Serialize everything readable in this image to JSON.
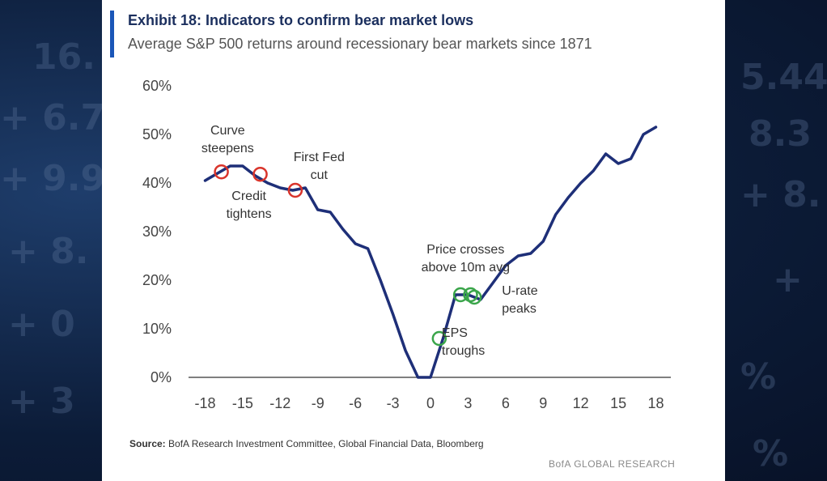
{
  "background_numbers": {
    "left": [
      "16.",
      "+ 6.7",
      "+ 9.9",
      "+ 8.",
      "+ 0",
      "+ 3"
    ],
    "right": [
      "5.44",
      "8.3",
      "+ 8.",
      "+",
      "%",
      "%"
    ]
  },
  "header": {
    "title": "Exhibit 18: Indicators to confirm bear market lows",
    "subtitle": "Average S&P 500 returns around recessionary bear markets since 1871"
  },
  "footer": {
    "source_label": "Source:",
    "source_text": "BofA Research Investment Committee, Global Financial Data, Bloomberg",
    "brand": "BofA GLOBAL RESEARCH"
  },
  "chart_data": {
    "type": "line",
    "title": "Exhibit 18: Indicators to confirm bear market lows",
    "subtitle": "Average S&P 500 returns around recessionary bear markets since 1871",
    "xlabel": "",
    "ylabel": "",
    "xlim": [
      -19,
      19
    ],
    "ylim": [
      0,
      60
    ],
    "x_ticks": [
      -18,
      -15,
      -12,
      -9,
      -6,
      -3,
      0,
      3,
      6,
      9,
      12,
      15,
      18
    ],
    "x_tick_labels": [
      "-18",
      "-15",
      "-12",
      "-9",
      "-6",
      "-3",
      "0",
      "3",
      "6",
      "9",
      "12",
      "15",
      "18"
    ],
    "y_ticks": [
      0,
      10,
      20,
      30,
      40,
      50,
      60
    ],
    "y_tick_labels": [
      "0%",
      "10%",
      "20%",
      "30%",
      "40%",
      "50%",
      "60%"
    ],
    "grid": false,
    "line_color": "#1e2f78",
    "series": [
      {
        "name": "",
        "x": [
          -18,
          -17,
          -16,
          -15,
          -14,
          -13,
          -12,
          -11,
          -10,
          -9,
          -8,
          -7,
          -6,
          -5,
          -4,
          -3,
          -2,
          -1,
          0,
          1,
          2,
          3,
          4,
          5,
          6,
          7,
          8,
          9,
          10,
          11,
          12,
          13,
          14,
          15,
          16,
          17,
          18
        ],
        "y": [
          40.5,
          42,
          43.5,
          43.5,
          41.5,
          40,
          39,
          38.5,
          39,
          34.5,
          34,
          30.5,
          27.5,
          26.5,
          20,
          13,
          5.5,
          0,
          0,
          8,
          17,
          17,
          16,
          19.5,
          23,
          25,
          25.5,
          28,
          33.5,
          37,
          40,
          42.5,
          46,
          44,
          45,
          50,
          51.5
        ]
      }
    ],
    "markers": [
      {
        "x": -16.7,
        "y": 42.3,
        "color": "#d9342b",
        "label": "Curve steepens"
      },
      {
        "x": -13.6,
        "y": 41.8,
        "color": "#d9342b",
        "label": "Credit tightens"
      },
      {
        "x": -10.8,
        "y": 38.5,
        "color": "#d9342b",
        "label": "First Fed cut"
      },
      {
        "x": 0.7,
        "y": 8,
        "color": "#3aa54a",
        "label": "EPS troughs"
      },
      {
        "x": 2.4,
        "y": 17,
        "color": "#3aa54a",
        "label": "Price crosses above 10m avg"
      },
      {
        "x": 3.2,
        "y": 17,
        "color": "#3aa54a",
        "label": "Price crosses above 10m avg"
      },
      {
        "x": 3.5,
        "y": 16.5,
        "color": "#3aa54a",
        "label": "U-rate peaks"
      }
    ],
    "annotations": [
      {
        "lines": [
          "Curve",
          "steepens"
        ],
        "x": -16.2,
        "y": 50,
        "anchor": "middle"
      },
      {
        "lines": [
          "Credit",
          "tightens"
        ],
        "x": -14.5,
        "y": 36.5,
        "anchor": "middle"
      },
      {
        "lines": [
          "First Fed",
          "cut"
        ],
        "x": -8.9,
        "y": 44.5,
        "anchor": "middle"
      },
      {
        "lines": [
          "Price crosses",
          "above 10m avg"
        ],
        "x": 2.8,
        "y": 25.5,
        "anchor": "middle"
      },
      {
        "lines": [
          "U-rate",
          "peaks"
        ],
        "x": 5.7,
        "y": 17,
        "anchor": "start"
      },
      {
        "lines": [
          "EPS",
          "troughs"
        ],
        "x": 0.9,
        "y": 8.3,
        "anchor": "start"
      }
    ]
  }
}
